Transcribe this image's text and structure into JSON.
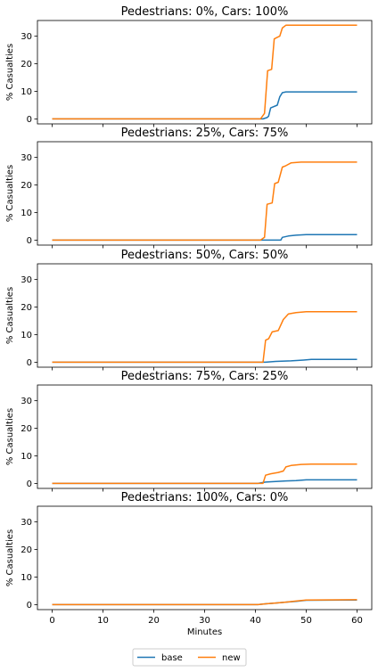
{
  "chart_data": [
    {
      "type": "line",
      "title": "Pedestrians: 0%, Cars: 100%",
      "ylabel": "% Casualties",
      "xlim": [
        -2.9,
        62.9
      ],
      "ylim": [
        -1.8,
        35.7
      ],
      "yticks": [
        0,
        10,
        20,
        30
      ],
      "series": [
        {
          "name": "base",
          "x": [
            0,
            41.5,
            42.3,
            42.6,
            43.0,
            44.3,
            44.8,
            45.3,
            46.0,
            60
          ],
          "y": [
            0,
            0,
            0.5,
            1.0,
            4.0,
            5.0,
            8.0,
            9.5,
            9.8,
            9.8
          ]
        },
        {
          "name": "new",
          "x": [
            0,
            41.0,
            41.8,
            42.4,
            43.2,
            43.7,
            44.2,
            44.8,
            45.3,
            46.0,
            60
          ],
          "y": [
            0,
            0,
            2.0,
            17.5,
            18.0,
            29.0,
            29.5,
            30.0,
            33.0,
            34.0,
            34.0
          ]
        }
      ]
    },
    {
      "type": "line",
      "title": "Pedestrians: 25%, Cars: 75%",
      "ylabel": "% Casualties",
      "xlim": [
        -2.9,
        62.9
      ],
      "ylim": [
        -1.8,
        35.7
      ],
      "yticks": [
        0,
        10,
        20,
        30
      ],
      "series": [
        {
          "name": "base",
          "x": [
            0,
            45.0,
            45.3,
            46.5,
            48.0,
            50.0,
            60
          ],
          "y": [
            0,
            0,
            1.0,
            1.5,
            1.8,
            2.0,
            2.0
          ]
        },
        {
          "name": "new",
          "x": [
            0,
            41.0,
            41.8,
            42.3,
            43.3,
            43.8,
            44.5,
            45.3,
            46.0,
            47.0,
            49.0,
            60
          ],
          "y": [
            0,
            0,
            1.0,
            13.0,
            13.5,
            20.5,
            21.0,
            26.5,
            27.0,
            28.0,
            28.3,
            28.3
          ]
        }
      ]
    },
    {
      "type": "line",
      "title": "Pedestrians: 50%, Cars: 50%",
      "ylabel": "% Casualties",
      "xlim": [
        -2.9,
        62.9
      ],
      "ylim": [
        -1.8,
        35.7
      ],
      "yticks": [
        0,
        10,
        20,
        30
      ],
      "series": [
        {
          "name": "base",
          "x": [
            0,
            42.0,
            44.0,
            47.0,
            49.5,
            51.0,
            60
          ],
          "y": [
            0,
            0,
            0.3,
            0.5,
            0.8,
            1.0,
            1.0
          ]
        },
        {
          "name": "new",
          "x": [
            0,
            41.5,
            42.0,
            42.6,
            43.3,
            44.5,
            45.5,
            46.5,
            48.0,
            50.0,
            60
          ],
          "y": [
            0,
            0,
            8.0,
            8.5,
            11.0,
            11.5,
            15.5,
            17.5,
            18.0,
            18.3,
            18.3
          ]
        }
      ]
    },
    {
      "type": "line",
      "title": "Pedestrians: 75%, Cars: 25%",
      "ylabel": "% Casualties",
      "xlim": [
        -2.9,
        62.9
      ],
      "ylim": [
        -1.8,
        35.7
      ],
      "yticks": [
        0,
        10,
        20,
        30
      ],
      "series": [
        {
          "name": "base",
          "x": [
            0,
            40.5,
            42.0,
            44.0,
            46.0,
            48.0,
            50.0,
            60
          ],
          "y": [
            0,
            0,
            0.5,
            0.7,
            0.9,
            1.0,
            1.3,
            1.3
          ]
        },
        {
          "name": "new",
          "x": [
            0,
            41.5,
            42.0,
            43.0,
            44.5,
            45.5,
            46.0,
            47.0,
            49.0,
            51.0,
            60
          ],
          "y": [
            0,
            0,
            3.0,
            3.5,
            4.0,
            4.5,
            6.0,
            6.5,
            6.9,
            7.0,
            7.0
          ]
        }
      ]
    },
    {
      "type": "line",
      "title": "Pedestrians: 100%, Cars: 0%",
      "ylabel": "% Casualties",
      "xlabel": "Minutes",
      "xlim": [
        -2.9,
        62.9
      ],
      "ylim": [
        -1.8,
        35.7
      ],
      "yticks": [
        0,
        10,
        20,
        30
      ],
      "xticks": [
        0,
        10,
        20,
        30,
        40,
        50,
        60
      ],
      "series": [
        {
          "name": "base",
          "x": [
            0,
            40.5,
            42.0,
            44.0,
            46.0,
            48.0,
            50.0,
            60
          ],
          "y": [
            0,
            0,
            0.3,
            0.6,
            0.9,
            1.2,
            1.6,
            1.7
          ]
        },
        {
          "name": "new",
          "x": [
            0,
            40.5,
            42.0,
            44.0,
            46.0,
            48.0,
            50.0,
            60
          ],
          "y": [
            0,
            0,
            0.3,
            0.6,
            0.9,
            1.3,
            1.7,
            1.8
          ]
        }
      ]
    }
  ],
  "legend": {
    "placement": "bottom-center",
    "entries": [
      {
        "name": "base",
        "color": "#1f77b4"
      },
      {
        "name": "new",
        "color": "#ff7f0e"
      }
    ]
  },
  "colors": {
    "base": "#1f77b4",
    "new": "#ff7f0e"
  }
}
